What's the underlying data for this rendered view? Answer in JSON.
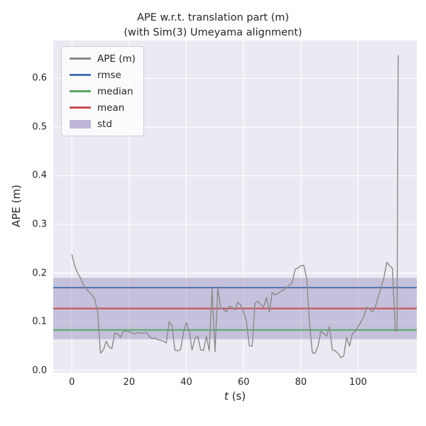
{
  "figure": {
    "title_line1": "APE w.r.t. translation part (m)",
    "title_line2": "(with Sim(3) Umeyama alignment)",
    "ylabel": "APE (m)",
    "xlabel_var": "t",
    "xlabel_unit": " (s)"
  },
  "chart_data": {
    "type": "line",
    "title": "APE w.r.t. translation part (m)\n(with Sim(3) Umeyama alignment)",
    "xlabel": "t (s)",
    "ylabel": "APE (m)",
    "xlim": [
      -6.5,
      120.5
    ],
    "ylim": [
      -0.005,
      0.678
    ],
    "xticks": [
      0,
      20,
      40,
      60,
      80,
      100
    ],
    "xtick_labels": [
      "0",
      "20",
      "40",
      "60",
      "80",
      "100"
    ],
    "yticks": [
      0.0,
      0.1,
      0.2,
      0.3,
      0.4,
      0.5,
      0.6
    ],
    "ytick_labels": [
      "0.0",
      "0.1",
      "0.2",
      "0.3",
      "0.4",
      "0.5",
      "0.6"
    ],
    "grid": true,
    "legend_position": "upper-left",
    "stats": {
      "rmse": 0.17,
      "mean": 0.127,
      "median": 0.083,
      "std": 0.063
    },
    "std_band": [
      0.064,
      0.19
    ],
    "colors": {
      "ape": "#8a8a8a",
      "rmse": "#4C72B0",
      "median": "#55A868",
      "mean": "#C44E52",
      "std": "#8172B2",
      "axes_bg": "#EAEAF2",
      "grid": "#FFFFFF",
      "text": "#262626"
    },
    "legend": [
      {
        "label": "APE (m)",
        "type": "line",
        "color": "#8a8a8a"
      },
      {
        "label": "rmse",
        "type": "line",
        "color": "#4C72B0"
      },
      {
        "label": "median",
        "type": "line",
        "color": "#55A868"
      },
      {
        "label": "mean",
        "type": "line",
        "color": "#C44E52"
      },
      {
        "label": "std",
        "type": "band",
        "color": "#8172B2"
      }
    ],
    "series": [
      {
        "name": "APE (m)",
        "x": [
          0,
          1,
          2,
          3,
          4,
          5,
          6,
          7,
          8,
          9,
          10,
          11,
          12,
          13,
          14,
          15,
          16,
          17,
          18,
          19,
          20,
          21,
          22,
          23,
          24,
          25,
          26,
          27,
          28,
          29,
          30,
          31,
          32,
          33,
          34,
          35,
          36,
          37,
          38,
          39,
          40,
          41,
          42,
          43,
          44,
          45,
          46,
          47,
          48,
          49,
          50,
          51,
          52,
          53,
          54,
          55,
          56,
          57,
          58,
          59,
          60,
          61,
          62,
          63,
          64,
          65,
          66,
          67,
          68,
          69,
          70,
          71,
          72,
          73,
          74,
          75,
          76,
          77,
          78,
          79,
          80,
          81,
          82,
          83,
          84,
          85,
          86,
          87,
          88,
          89,
          90,
          91,
          92,
          93,
          94,
          95,
          96,
          97,
          98,
          99,
          100,
          101,
          102,
          103,
          104,
          105,
          106,
          107,
          108,
          109,
          110,
          111,
          112,
          113,
          113.6,
          114
        ],
        "y": [
          0.238,
          0.215,
          0.2,
          0.19,
          0.176,
          0.168,
          0.161,
          0.155,
          0.146,
          0.12,
          0.035,
          0.042,
          0.06,
          0.048,
          0.045,
          0.077,
          0.075,
          0.068,
          0.08,
          0.081,
          0.079,
          0.077,
          0.075,
          0.078,
          0.076,
          0.077,
          0.078,
          0.07,
          0.065,
          0.066,
          0.063,
          0.062,
          0.06,
          0.056,
          0.1,
          0.092,
          0.042,
          0.04,
          0.043,
          0.078,
          0.098,
          0.08,
          0.042,
          0.065,
          0.07,
          0.042,
          0.041,
          0.07,
          0.04,
          0.168,
          0.038,
          0.17,
          0.128,
          0.125,
          0.12,
          0.132,
          0.13,
          0.124,
          0.14,
          0.134,
          0.12,
          0.1,
          0.05,
          0.05,
          0.138,
          0.142,
          0.135,
          0.13,
          0.15,
          0.12,
          0.16,
          0.155,
          0.158,
          0.163,
          0.165,
          0.17,
          0.175,
          0.18,
          0.208,
          0.21,
          0.215,
          0.216,
          0.19,
          0.1,
          0.036,
          0.035,
          0.05,
          0.08,
          0.076,
          0.07,
          0.09,
          0.042,
          0.04,
          0.035,
          0.026,
          0.03,
          0.068,
          0.05,
          0.075,
          0.08,
          0.09,
          0.1,
          0.11,
          0.13,
          0.126,
          0.12,
          0.13,
          0.15,
          0.17,
          0.19,
          0.222,
          0.215,
          0.21,
          0.08,
          0.082,
          0.648
        ]
      }
    ]
  }
}
